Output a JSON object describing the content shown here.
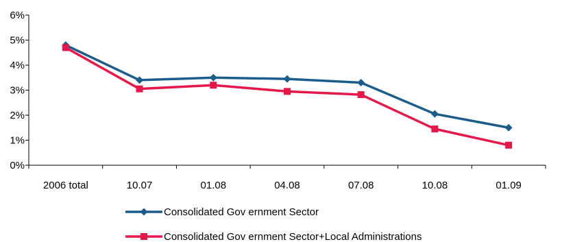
{
  "chart_data": {
    "type": "line",
    "categories": [
      "2006 total",
      "10.07",
      "01.08",
      "04.08",
      "07.08",
      "10.08",
      "01.09"
    ],
    "ylim": [
      0,
      6
    ],
    "yticks": [
      "0%",
      "1%",
      "2%",
      "3%",
      "4%",
      "5%",
      "6%"
    ],
    "grid": false,
    "legend_position": "bottom",
    "series": [
      {
        "name": "Consolidated Gov ernment Sector",
        "values": [
          4.8,
          3.4,
          3.5,
          3.45,
          3.3,
          2.05,
          1.5
        ],
        "color": "#1a5d8a",
        "marker": "diamond"
      },
      {
        "name": "Consolidated Gov ernment Sector+Local Administrations",
        "values": [
          4.7,
          3.05,
          3.2,
          2.95,
          2.82,
          1.45,
          0.8
        ],
        "color": "#e8174a",
        "marker": "square"
      }
    ]
  }
}
